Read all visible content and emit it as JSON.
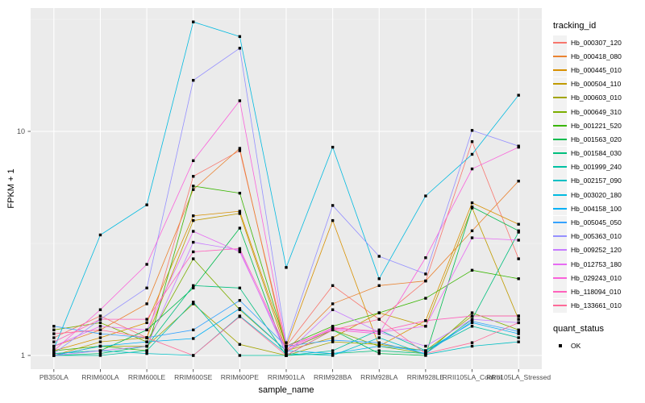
{
  "chart_data": {
    "type": "line",
    "title": "",
    "xlabel": "sample_name",
    "ylabel": "FPKM + 1",
    "y_scale": "log10",
    "grid": true,
    "panel_bg": "#EBEBEB",
    "grid_color": "#FFFFFF",
    "axis_text_color": "#4D4D4D",
    "marker_shape": "square",
    "marker_color": "#000000",
    "y_ticks": [
      {
        "label": "1",
        "value": 1
      },
      {
        "label": "10",
        "value": 10
      }
    ],
    "y_minor_values": [
      3.1623,
      31.623
    ],
    "ylim": [
      1,
      35
    ],
    "categories": [
      "PB350LA",
      "RRIM600LA",
      "RRIM600LE",
      "RRIM600SE",
      "RRIM600PE",
      "RRIM901LA",
      "RRIM928BA",
      "RRIM928LA",
      "RRIM928LE",
      "RRII105LA_Control",
      "RRII105LA_Stressed"
    ],
    "legend_title": "tracking_id",
    "series": [
      {
        "name": "Hb_000307_120",
        "color": "#F8766D",
        "values": [
          1.2,
          1.5,
          1.2,
          6.3,
          8.2,
          1.1,
          2.05,
          1.45,
          2.15,
          9.0,
          2.7
        ]
      },
      {
        "name": "Hb_000418_080",
        "color": "#EA8331",
        "values": [
          1.1,
          1.3,
          1.7,
          5.5,
          8.4,
          1.05,
          1.7,
          2.05,
          2.15,
          3.6,
          6.0
        ]
      },
      {
        "name": "Hb_000445_010",
        "color": "#D89000",
        "values": [
          1.05,
          1.2,
          1.4,
          4.2,
          4.4,
          1.1,
          4.0,
          1.1,
          1.43,
          4.8,
          3.85
        ]
      },
      {
        "name": "Hb_000504_110",
        "color": "#C09B00",
        "values": [
          1.0,
          1.15,
          1.2,
          4.0,
          4.3,
          1.05,
          1.2,
          1.55,
          1.35,
          4.55,
          1.45
        ]
      },
      {
        "name": "Hb_000603_010",
        "color": "#A3A500",
        "values": [
          1.0,
          1.1,
          1.1,
          1.7,
          1.12,
          1.0,
          1.15,
          1.12,
          1.05,
          1.5,
          1.5
        ]
      },
      {
        "name": "Hb_000649_310",
        "color": "#7CAE00",
        "values": [
          1.3,
          1.4,
          1.15,
          2.7,
          1.6,
          1.05,
          1.3,
          1.1,
          1.02,
          1.55,
          1.3
        ]
      },
      {
        "name": "Hb_001221_520",
        "color": "#39B600",
        "values": [
          1.05,
          1.1,
          1.05,
          5.7,
          5.3,
          1.1,
          1.35,
          1.55,
          1.8,
          2.4,
          2.2
        ]
      },
      {
        "name": "Hb_001563_020",
        "color": "#00BB4E",
        "values": [
          1.02,
          1.05,
          1.3,
          2.0,
          3.7,
          1.0,
          1.3,
          1.02,
          1.0,
          4.6,
          3.6
        ]
      },
      {
        "name": "Hb_001584_030",
        "color": "#00BF7D",
        "values": [
          1.0,
          1.02,
          1.1,
          2.05,
          2.0,
          1.0,
          1.02,
          1.05,
          1.02,
          1.45,
          3.55
        ]
      },
      {
        "name": "Hb_001999_240",
        "color": "#00C1A3",
        "values": [
          1.0,
          1.0,
          1.05,
          1.73,
          1.0,
          1.0,
          1.05,
          1.3,
          1.05,
          1.35,
          1.2
        ]
      },
      {
        "name": "Hb_002157_090",
        "color": "#00BFC4",
        "values": [
          1.02,
          1.05,
          1.02,
          1.0,
          1.5,
          1.02,
          1.0,
          1.2,
          1.01,
          1.1,
          1.15
        ]
      },
      {
        "name": "Hb_003020_180",
        "color": "#00BAE0",
        "values": [
          1.07,
          3.45,
          4.7,
          30.8,
          26.5,
          2.47,
          8.5,
          2.2,
          5.15,
          7.9,
          14.5
        ]
      },
      {
        "name": "Hb_004158_100",
        "color": "#00B0F6",
        "values": [
          1.0,
          1.1,
          1.15,
          1.19,
          1.62,
          1.05,
          1.02,
          1.1,
          1.05,
          1.4,
          1.25
        ]
      },
      {
        "name": "Hb_005045_050",
        "color": "#35A2FF",
        "values": [
          1.35,
          1.25,
          1.2,
          1.3,
          1.76,
          1.1,
          1.17,
          1.14,
          1.02,
          1.42,
          1.28
        ]
      },
      {
        "name": "Hb_005363_010",
        "color": "#9590FF",
        "values": [
          1.02,
          1.45,
          2.0,
          16.9,
          23.5,
          1.14,
          4.67,
          2.77,
          2.31,
          10.1,
          8.6
        ]
      },
      {
        "name": "Hb_009252_120",
        "color": "#C77CFF",
        "values": [
          1.0,
          1.05,
          1.1,
          3.2,
          2.95,
          1.02,
          1.6,
          1.27,
          1.1,
          1.45,
          1.4
        ]
      },
      {
        "name": "Hb_012753_180",
        "color": "#E76BF3",
        "values": [
          1.1,
          1.35,
          1.3,
          3.58,
          2.9,
          1.05,
          1.32,
          1.27,
          1.35,
          3.35,
          3.27
        ]
      },
      {
        "name": "Hb_029243_010",
        "color": "#FA62DB",
        "values": [
          1.05,
          1.6,
          2.55,
          7.4,
          13.7,
          1.1,
          1.3,
          1.25,
          2.73,
          6.8,
          8.5
        ]
      },
      {
        "name": "Hb_118094_010",
        "color": "#FF62BC",
        "values": [
          1.15,
          1.45,
          1.45,
          2.9,
          3.0,
          1.07,
          1.33,
          1.28,
          1.43,
          1.5,
          1.5
        ]
      },
      {
        "name": "Hb_133661_010",
        "color": "#FF6A98",
        "values": [
          1.25,
          1.3,
          1.2,
          1.0,
          1.49,
          1.0,
          1.3,
          1.45,
          1.02,
          1.14,
          1.4
        ]
      }
    ],
    "legend2_title": "quant_status",
    "legend2_items": [
      {
        "label": "OK",
        "shape": "square",
        "color": "#000000"
      }
    ]
  }
}
